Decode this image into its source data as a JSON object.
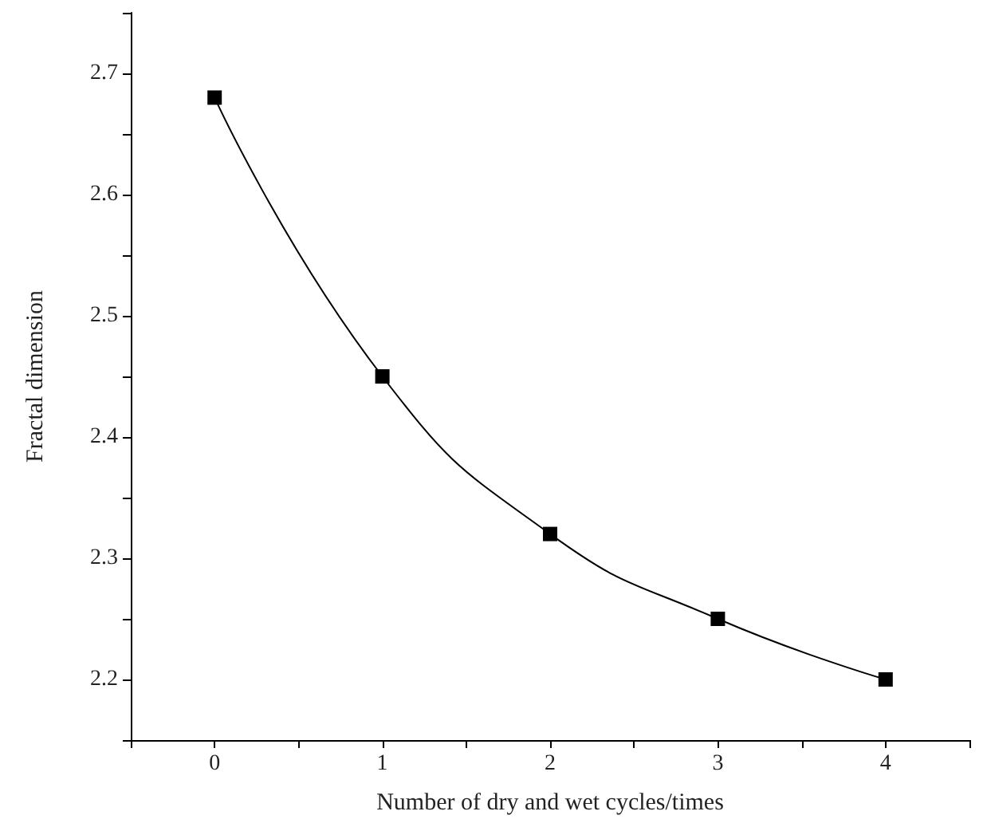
{
  "chart_data": {
    "type": "line",
    "xlabel": "Number of dry and wet cycles/times",
    "ylabel": "Fractal dimension",
    "x": [
      0,
      1,
      2,
      3,
      4
    ],
    "series": [
      {
        "color": "#000000",
        "values": [
          2.68,
          2.45,
          2.32,
          2.25,
          2.2
        ]
      }
    ],
    "xlim": [
      -0.5,
      4.5
    ],
    "xticks": [
      {
        "value": -0.5,
        "label": null
      },
      0,
      {
        "value": 0.5,
        "label": null
      },
      1,
      {
        "value": 1.5,
        "label": null
      },
      2,
      {
        "value": 2.5,
        "label": null
      },
      3,
      {
        "value": 3.5,
        "label": null
      },
      4,
      {
        "value": 4.5,
        "label": null
      }
    ],
    "ylim": [
      2.15,
      2.75
    ],
    "yticks": [
      {
        "value": 2.15,
        "label": null
      },
      2.2,
      {
        "value": 2.25,
        "label": null
      },
      2.3,
      {
        "value": 2.35,
        "label": null
      },
      2.4,
      {
        "value": 2.45,
        "label": null
      },
      2.5,
      {
        "value": 2.55,
        "label": null
      },
      2.6,
      {
        "value": 2.65,
        "label": null
      },
      2.7,
      {
        "value": 2.75,
        "label": null
      }
    ],
    "marker": "square",
    "grid": false
  }
}
